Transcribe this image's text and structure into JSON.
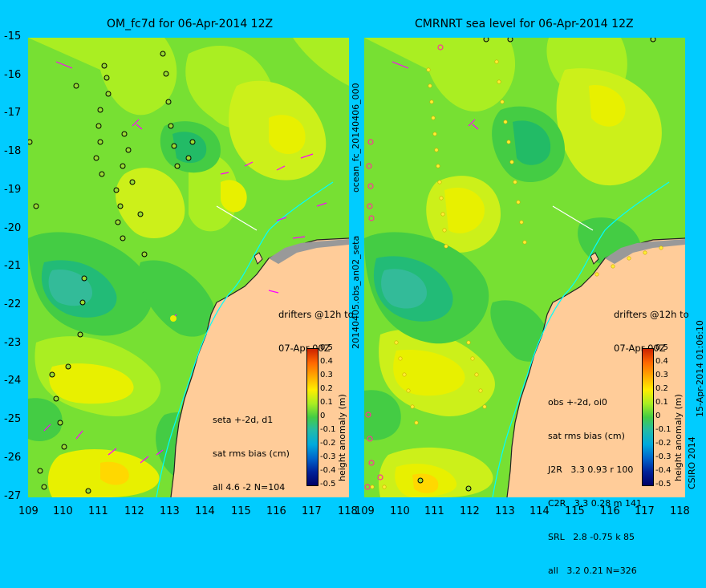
{
  "left_panel": {
    "title": "OM_fc7d for 06-Apr-2014 12Z",
    "stats": {
      "line1": "seta +-2d, d1",
      "line2": "sat rms bias (cm)",
      "line3": "all 4.6 -2 N=104"
    },
    "drifters": {
      "line1": "drifters @12h to",
      "line2": "07-Apr 00Z"
    }
  },
  "right_panel": {
    "title": "CMRNRT sea level  for 06-Apr-2014 12Z",
    "stats": {
      "line1": "obs +-2d, oi0",
      "line2": "sat rms bias (cm)",
      "line3": "J2R   3.3 0.93 r 100",
      "line4": "C2R   3.3 0.28 m 141",
      "line5": "SRL   2.8 -0.75 k 85",
      "line6": "all   3.2 0.21 N=326"
    },
    "drifters": {
      "line1": "drifters @12h to",
      "line2": "07-Apr 00Z"
    }
  },
  "side_labels": {
    "middle_top": "ocean_fc_20140406_000",
    "middle_bottom": "20140405.obs_an02_seta",
    "right": "15-Apr-2014 01:06:10",
    "right_bottom": "CSIRO 2014"
  },
  "axes": {
    "lat_ticks": [
      "-15",
      "-16",
      "-17",
      "-18",
      "-19",
      "-20",
      "-21",
      "-22",
      "-23",
      "-24",
      "-25",
      "-26",
      "-27"
    ],
    "lon_ticks": [
      "109",
      "110",
      "111",
      "112",
      "113",
      "114",
      "115",
      "116",
      "117",
      "118"
    ]
  },
  "colorbar": {
    "label": "height anomaly (m)",
    "ticks": [
      "0.5",
      "0.4",
      "0.3",
      "0.2",
      "0.1",
      "0",
      "-0.1",
      "-0.2",
      "-0.3",
      "-0.4",
      "-0.5"
    ]
  },
  "colors": {
    "background": "#00ccff",
    "land": "#ffcc99",
    "ocean_base": "#66dd22",
    "drifter": "#ff00ff"
  }
}
